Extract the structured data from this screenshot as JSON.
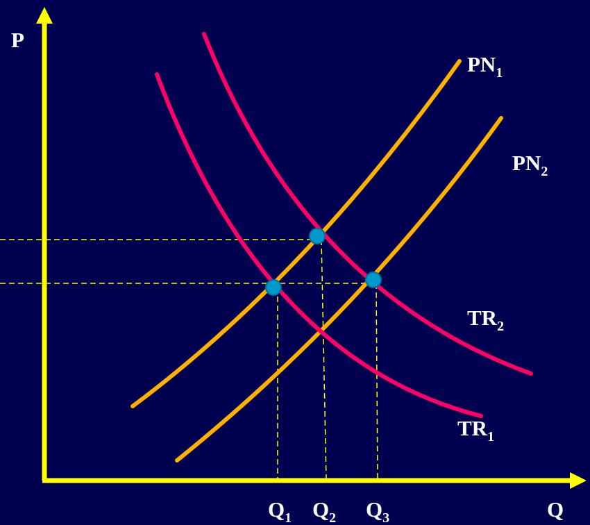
{
  "axes": {
    "y_label": "P",
    "x_label": "Q"
  },
  "curves": {
    "supply_1": {
      "label": "PN",
      "subscript": "1"
    },
    "supply_2": {
      "label": "PN",
      "subscript": "2"
    },
    "demand_1": {
      "label": "TR",
      "subscript": "1"
    },
    "demand_2": {
      "label": "TR",
      "subscript": "2"
    }
  },
  "quantities": [
    {
      "label": "Q",
      "subscript": "1"
    },
    {
      "label": "Q",
      "subscript": "2"
    },
    {
      "label": "Q",
      "subscript": "3"
    }
  ],
  "colors": {
    "background": "#000050",
    "axes": "#ffff00",
    "supply": "#ffb000",
    "demand": "#ff0066",
    "equilibrium": "#0099cc",
    "guides": "#ffff00",
    "text": "#ffffff"
  }
}
